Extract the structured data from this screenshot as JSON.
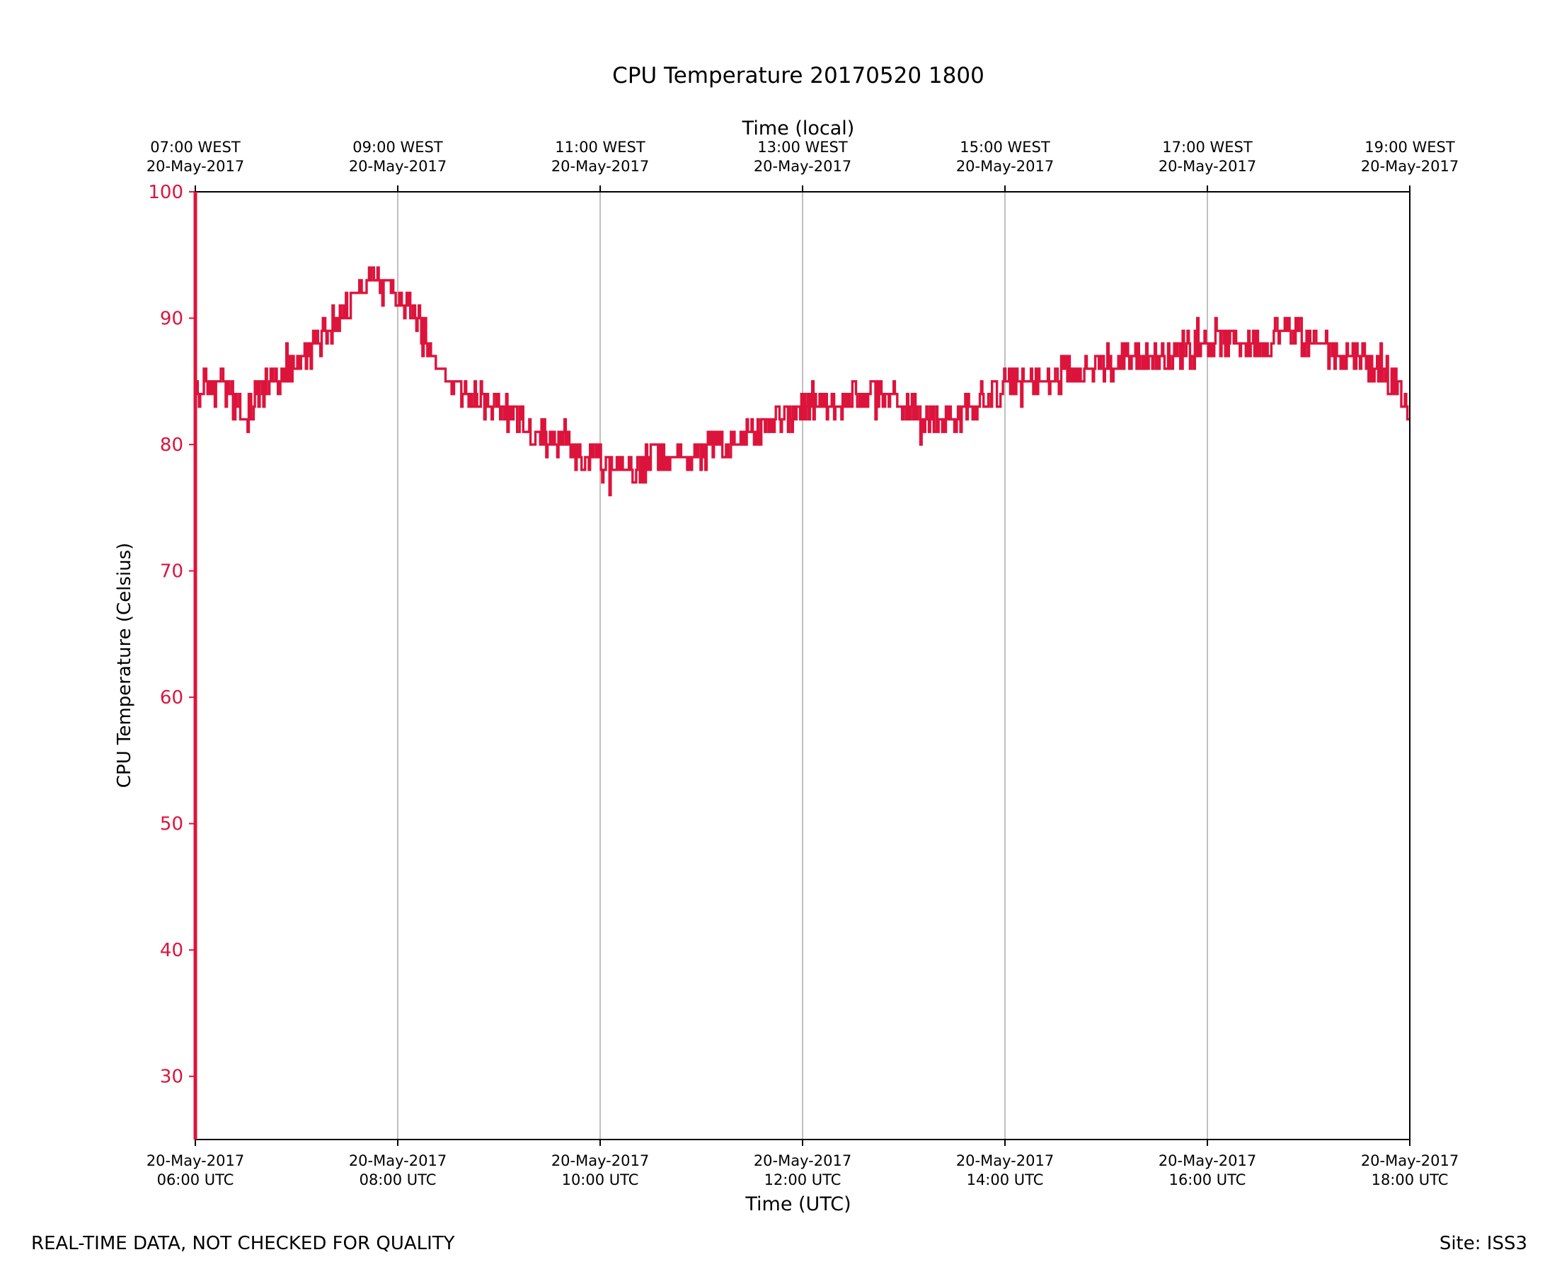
{
  "chart_data": {
    "type": "line",
    "title": "CPU Temperature 20170520 1800",
    "xlabel": "Time (UTC)",
    "x2label": "Time (local)",
    "ylabel": "CPU Temperature (Celsius)",
    "ylim": [
      25,
      100
    ],
    "xlim_hours_utc": [
      6,
      18
    ],
    "yticks": [
      30,
      40,
      50,
      60,
      70,
      80,
      90,
      100
    ],
    "xticks_utc": [
      {
        "hour": 6,
        "date": "20-May-2017",
        "time": "06:00 UTC"
      },
      {
        "hour": 8,
        "date": "20-May-2017",
        "time": "08:00 UTC"
      },
      {
        "hour": 10,
        "date": "20-May-2017",
        "time": "10:00 UTC"
      },
      {
        "hour": 12,
        "date": "20-May-2017",
        "time": "12:00 UTC"
      },
      {
        "hour": 14,
        "date": "20-May-2017",
        "time": "14:00 UTC"
      },
      {
        "hour": 16,
        "date": "20-May-2017",
        "time": "16:00 UTC"
      },
      {
        "hour": 18,
        "date": "20-May-2017",
        "time": "18:00 UTC"
      }
    ],
    "xticks_local": [
      {
        "hour": 6,
        "time": "07:00 WEST",
        "date": "20-May-2017"
      },
      {
        "hour": 8,
        "time": "09:00 WEST",
        "date": "20-May-2017"
      },
      {
        "hour": 10,
        "time": "11:00 WEST",
        "date": "20-May-2017"
      },
      {
        "hour": 12,
        "time": "13:00 WEST",
        "date": "20-May-2017"
      },
      {
        "hour": 14,
        "time": "15:00 WEST",
        "date": "20-May-2017"
      },
      {
        "hour": 16,
        "time": "17:00 WEST",
        "date": "20-May-2017"
      },
      {
        "hour": 18,
        "time": "19:00 WEST",
        "date": "20-May-2017"
      }
    ],
    "grid": "vertical",
    "series": [
      {
        "name": "CPU Temperature",
        "color": "#dc143c",
        "points": [
          [
            6.0,
            84
          ],
          [
            6.1,
            85
          ],
          [
            6.25,
            85
          ],
          [
            6.4,
            83
          ],
          [
            6.5,
            82
          ],
          [
            6.6,
            84
          ],
          [
            6.75,
            85
          ],
          [
            7.0,
            86
          ],
          [
            7.2,
            88
          ],
          [
            7.4,
            90
          ],
          [
            7.6,
            92
          ],
          [
            7.75,
            93
          ],
          [
            8.0,
            92
          ],
          [
            8.2,
            90
          ],
          [
            8.4,
            86
          ],
          [
            8.7,
            84
          ],
          [
            9.0,
            83
          ],
          [
            9.3,
            81
          ],
          [
            9.6,
            80
          ],
          [
            9.9,
            79
          ],
          [
            10.1,
            78
          ],
          [
            10.3,
            78
          ],
          [
            10.6,
            79
          ],
          [
            10.9,
            79
          ],
          [
            11.2,
            80
          ],
          [
            11.5,
            81
          ],
          [
            11.8,
            82
          ],
          [
            12.0,
            83
          ],
          [
            12.3,
            83
          ],
          [
            12.6,
            84
          ],
          [
            12.9,
            84
          ],
          [
            13.2,
            82
          ],
          [
            13.5,
            82
          ],
          [
            13.8,
            84
          ],
          [
            14.1,
            85
          ],
          [
            14.4,
            85
          ],
          [
            14.7,
            86
          ],
          [
            15.0,
            86
          ],
          [
            15.3,
            87
          ],
          [
            15.6,
            87
          ],
          [
            15.9,
            88
          ],
          [
            16.2,
            88
          ],
          [
            16.5,
            88
          ],
          [
            16.8,
            89
          ],
          [
            17.1,
            88
          ],
          [
            17.4,
            87
          ],
          [
            17.7,
            86
          ],
          [
            17.85,
            85
          ],
          [
            18.0,
            82
          ]
        ]
      }
    ]
  },
  "footer": {
    "left": "REAL-TIME DATA, NOT CHECKED FOR QUALITY",
    "right": "Site: ISS3"
  }
}
